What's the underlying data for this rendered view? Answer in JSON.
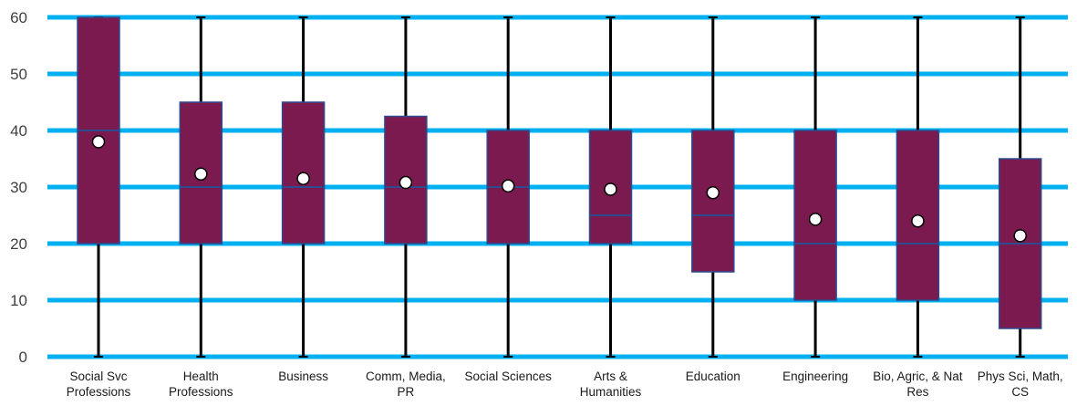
{
  "chart_data": {
    "type": "box",
    "title": "",
    "xlabel": "",
    "ylabel": "",
    "ylim": [
      0,
      60
    ],
    "yticks": [
      0,
      10,
      20,
      30,
      40,
      50,
      60
    ],
    "grid": true,
    "legend": "none",
    "colors": {
      "box_fill": "#7a1a4e",
      "box_edge": "#2e4b8f",
      "gridline": "#00b0f0",
      "whisker": "#000000",
      "mean_marker_fill": "#ffffff"
    },
    "categories": [
      "Social Svc Professions",
      "Health Professions",
      "Business",
      "Comm, Media, PR",
      "Social Sciences",
      "Arts & Humanities",
      "Education",
      "Engineering",
      "Bio, Agric, & Nat Res",
      "Phys Sci, Math, CS"
    ],
    "category_label_lines": [
      [
        "Social Svc",
        "Professions"
      ],
      [
        "Health",
        "Professions"
      ],
      [
        "Business"
      ],
      [
        "Comm, Media,",
        "PR"
      ],
      [
        "Social Sciences"
      ],
      [
        "Arts &",
        "Humanities"
      ],
      [
        "Education"
      ],
      [
        "Engineering"
      ],
      [
        "Bio, Agric, & Nat",
        "Res"
      ],
      [
        "Phys Sci, Math,",
        "CS"
      ]
    ],
    "boxes": [
      {
        "min": 0,
        "q1": 20,
        "median": 40,
        "q3": 60,
        "max": 60,
        "mean": 38
      },
      {
        "min": 0,
        "q1": 20,
        "median": 30,
        "q3": 45,
        "max": 60,
        "mean": 32.3
      },
      {
        "min": 0,
        "q1": 20,
        "median": 30,
        "q3": 45,
        "max": 60,
        "mean": 31.5
      },
      {
        "min": 0,
        "q1": 20,
        "median": 30,
        "q3": 42.5,
        "max": 60,
        "mean": 30.8
      },
      {
        "min": 0,
        "q1": 20,
        "median": 30,
        "q3": 40,
        "max": 60,
        "mean": 30.2
      },
      {
        "min": 0,
        "q1": 20,
        "median": 25,
        "q3": 40,
        "max": 60,
        "mean": 29.6
      },
      {
        "min": 0,
        "q1": 15,
        "median": 25,
        "q3": 40,
        "max": 60,
        "mean": 29
      },
      {
        "min": 0,
        "q1": 10,
        "median": 20,
        "q3": 40,
        "max": 60,
        "mean": 24.3
      },
      {
        "min": 0,
        "q1": 10,
        "median": 20,
        "q3": 40,
        "max": 60,
        "mean": 24
      },
      {
        "min": 0,
        "q1": 5,
        "median": 20,
        "q3": 35,
        "max": 60,
        "mean": 21.4
      }
    ]
  }
}
